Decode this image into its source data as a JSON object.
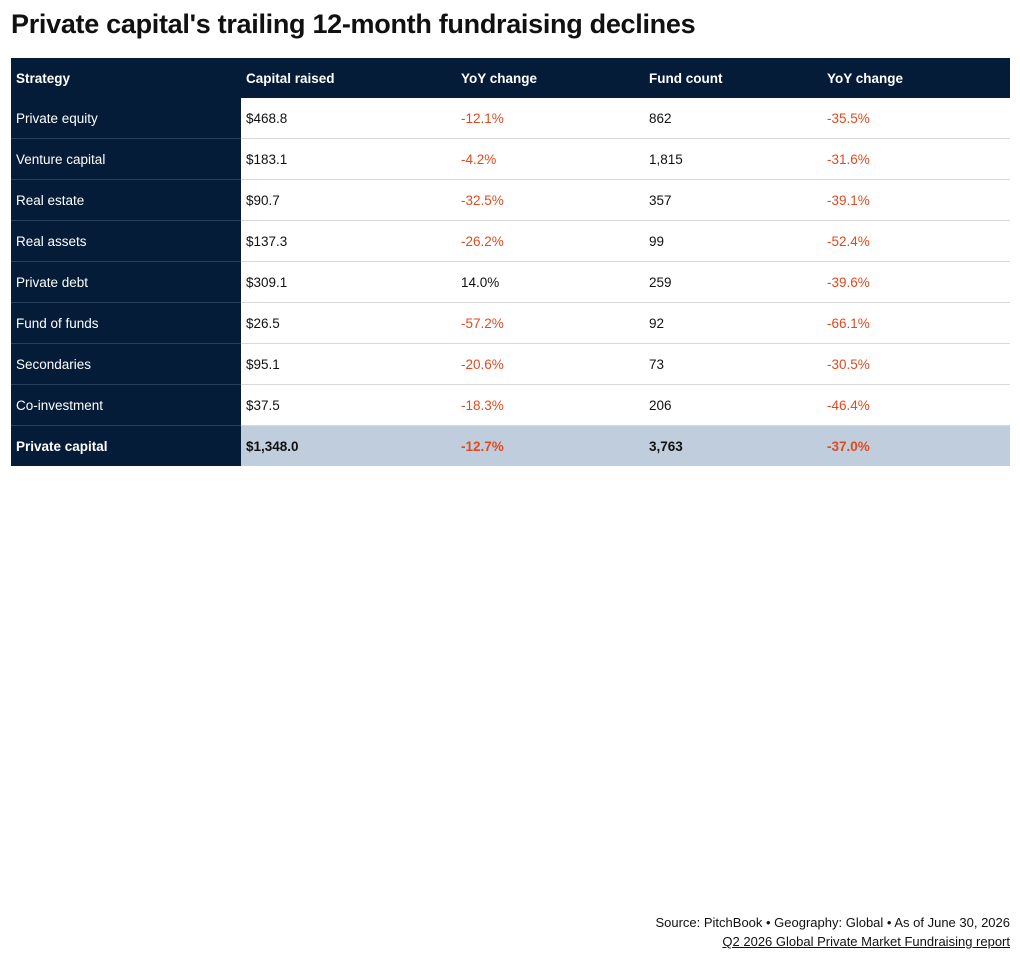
{
  "title": "Private capital's trailing 12-month fundraising declines",
  "colors": {
    "header_bg": "#041c38",
    "negative": "#e04a1f",
    "total_row_bg": "#bfcddd"
  },
  "chart_data": {
    "type": "table",
    "title": "Private capital's trailing 12-month fundraising declines",
    "columns": [
      "Strategy",
      "Capital raised",
      "YoY change",
      "Fund count",
      "YoY change"
    ],
    "rows": [
      {
        "strategy": "Private equity",
        "capital_raised": "$468.8",
        "capital_yoy": "-12.1%",
        "fund_count": "862",
        "count_yoy": "-35.5%"
      },
      {
        "strategy": "Venture capital",
        "capital_raised": "$183.1",
        "capital_yoy": "-4.2%",
        "fund_count": "1,815",
        "count_yoy": "-31.6%"
      },
      {
        "strategy": "Real estate",
        "capital_raised": "$90.7",
        "capital_yoy": "-32.5%",
        "fund_count": "357",
        "count_yoy": "-39.1%"
      },
      {
        "strategy": "Real assets",
        "capital_raised": "$137.3",
        "capital_yoy": "-26.2%",
        "fund_count": "99",
        "count_yoy": "-52.4%"
      },
      {
        "strategy": "Private debt",
        "capital_raised": "$309.1",
        "capital_yoy": "14.0%",
        "fund_count": "259",
        "count_yoy": "-39.6%"
      },
      {
        "strategy": "Fund of funds",
        "capital_raised": "$26.5",
        "capital_yoy": "-57.2%",
        "fund_count": "92",
        "count_yoy": "-66.1%"
      },
      {
        "strategy": "Secondaries",
        "capital_raised": "$95.1",
        "capital_yoy": "-20.6%",
        "fund_count": "73",
        "count_yoy": "-30.5%"
      },
      {
        "strategy": "Co-investment",
        "capital_raised": "$37.5",
        "capital_yoy": "-18.3%",
        "fund_count": "206",
        "count_yoy": "-46.4%"
      }
    ],
    "total": {
      "strategy": "Private capital",
      "capital_raised": "$1,348.0",
      "capital_yoy": "-12.7%",
      "fund_count": "3,763",
      "count_yoy": "-37.0%"
    }
  },
  "footer": {
    "source": "Source: PitchBook • Geography: Global • As of June 30, 2026",
    "report": "Q2 2026 Global Private Market Fundraising report"
  }
}
